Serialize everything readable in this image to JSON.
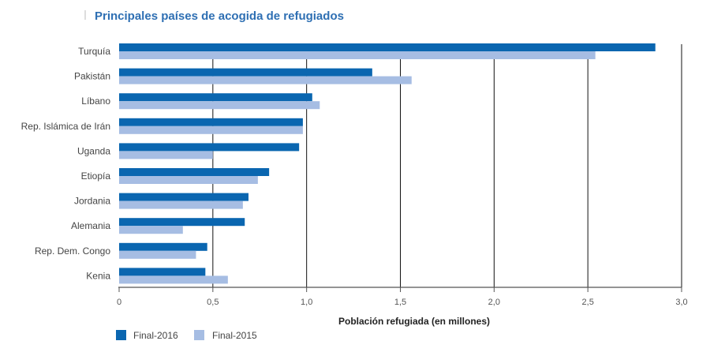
{
  "chart_data": {
    "type": "bar",
    "orientation": "horizontal",
    "title": "Principales países de acogida de refugiados",
    "xlabel": "Población refugiada (en millones)",
    "ylabel": "",
    "xlim": [
      0,
      3.0
    ],
    "xticks": [
      "0",
      "0,5",
      "1,0",
      "1,5",
      "2,0",
      "2,5",
      "3,0"
    ],
    "grid": "vertical",
    "legend_position": "bottom-left",
    "categories": [
      "Turquía",
      "Pakistán",
      "Líbano",
      "Rep. Islámica de Irán",
      "Uganda",
      "Etiopía",
      "Jordania",
      "Alemania",
      "Rep. Dem. Congo",
      "Kenia"
    ],
    "series": [
      {
        "name": "Final-2016",
        "color": "#0a66b0",
        "values": [
          2.86,
          1.35,
          1.03,
          0.98,
          0.96,
          0.8,
          0.69,
          0.67,
          0.47,
          0.46
        ]
      },
      {
        "name": "Final-2015",
        "color": "#a6bde3",
        "values": [
          2.54,
          1.56,
          1.07,
          0.98,
          0.5,
          0.74,
          0.66,
          0.34,
          0.41,
          0.58
        ]
      }
    ],
    "title_color": "#2e6fb3"
  }
}
